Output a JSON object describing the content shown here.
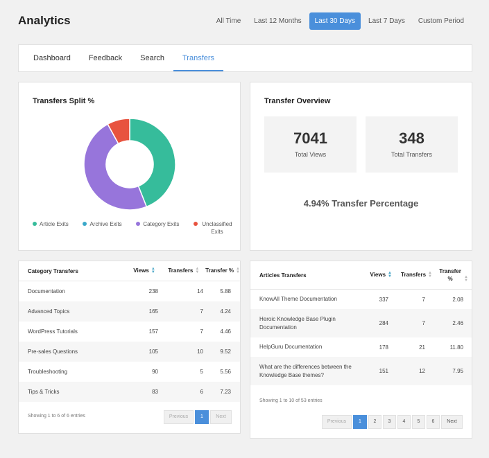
{
  "header": {
    "title": "Analytics",
    "periods": [
      "All Time",
      "Last 12 Months",
      "Last 30 Days",
      "Last 7 Days",
      "Custom Period"
    ],
    "active_period": 2
  },
  "tabs": [
    "Dashboard",
    "Feedback",
    "Search",
    "Transfers"
  ],
  "active_tab": 3,
  "split": {
    "title": "Transfers Split %",
    "chart_data": {
      "type": "pie",
      "categories": [
        "Article Exits",
        "Archive Exits",
        "Category Exits",
        "Unclassified Exits"
      ],
      "values": [
        44,
        0,
        48,
        8
      ],
      "colors": [
        "#36bc9b",
        "#3aa8c9",
        "#9775db",
        "#e8533f"
      ]
    },
    "legend": [
      "Article Exits",
      "Archive Exits",
      "Category Exits",
      "Unclassified Exits"
    ]
  },
  "overview": {
    "title": "Transfer Overview",
    "total_views": "7041",
    "total_views_label": "Total Views",
    "total_transfers": "348",
    "total_transfers_label": "Total Transfers",
    "percentage_text": "4.94% Transfer Percentage"
  },
  "category_transfers": {
    "columns": [
      "Category Transfers",
      "Views",
      "Transfers",
      "Transfer %"
    ],
    "rows": [
      [
        "Documentation",
        "238",
        "14",
        "5.88"
      ],
      [
        "Advanced Topics",
        "165",
        "7",
        "4.24"
      ],
      [
        "WordPress Tutorials",
        "157",
        "7",
        "4.46"
      ],
      [
        "Pre-sales Questions",
        "105",
        "10",
        "9.52"
      ],
      [
        "Troubleshooting",
        "90",
        "5",
        "5.56"
      ],
      [
        "Tips & Tricks",
        "83",
        "6",
        "7.23"
      ]
    ],
    "footer": "Showing 1 to 6 of 6 entries",
    "pager": [
      "Previous",
      "1",
      "Next"
    ]
  },
  "articles_transfers": {
    "columns": [
      "Articles Transfers",
      "Views",
      "Transfers",
      "Transfer %"
    ],
    "rows": [
      [
        "KnowAll Theme Documentation",
        "337",
        "7",
        "2.08"
      ],
      [
        "Heroic Knowledge Base Plugin Documentation",
        "284",
        "7",
        "2.46"
      ],
      [
        "HelpGuru Documentation",
        "178",
        "21",
        "11.80"
      ],
      [
        "What are the differences between the Knowledge Base themes?",
        "151",
        "12",
        "7.95"
      ]
    ],
    "footer": "Showing 1 to 10 of 53 entries",
    "pager": [
      "Previous",
      "1",
      "2",
      "3",
      "4",
      "5",
      "6",
      "Next"
    ]
  }
}
